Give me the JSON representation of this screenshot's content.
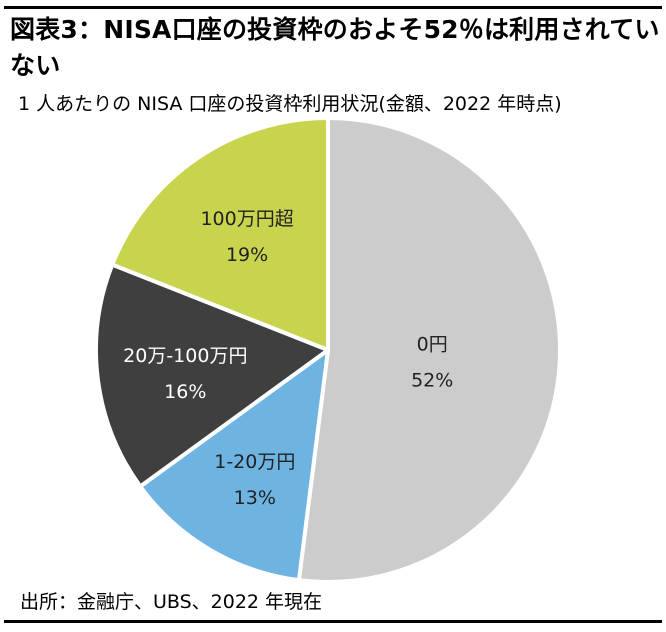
{
  "title": "図表3：NISA口座の投資枠のおよそ52％は利用されていない",
  "subtitle": "1 人あたりの NISA 口座の投資枠利用状況(金額、2022 年時点)",
  "source": "出所：金融庁、UBS、2022 年現在",
  "chart_data": {
    "type": "pie",
    "title": "図表3：NISA口座の投資枠のおよそ52％は利用されていない",
    "subtitle": "1 人あたりの NISA 口座の投資枠利用状況(金額、2022 年時点)",
    "slices": [
      {
        "label": "0円",
        "value": 52,
        "value_label": "52%",
        "color": "#cccccc"
      },
      {
        "label": "1-20万円",
        "value": 13,
        "value_label": "13%",
        "color": "#6eb4e2"
      },
      {
        "label": "20万-100万円",
        "value": 16,
        "value_label": "16%",
        "color": "#3f3f3f"
      },
      {
        "label": "100万円超",
        "value": 19,
        "value_label": "19%",
        "color": "#c8d44e"
      }
    ],
    "start": "12 o'clock",
    "direction": "clockwise",
    "legend": "none"
  }
}
